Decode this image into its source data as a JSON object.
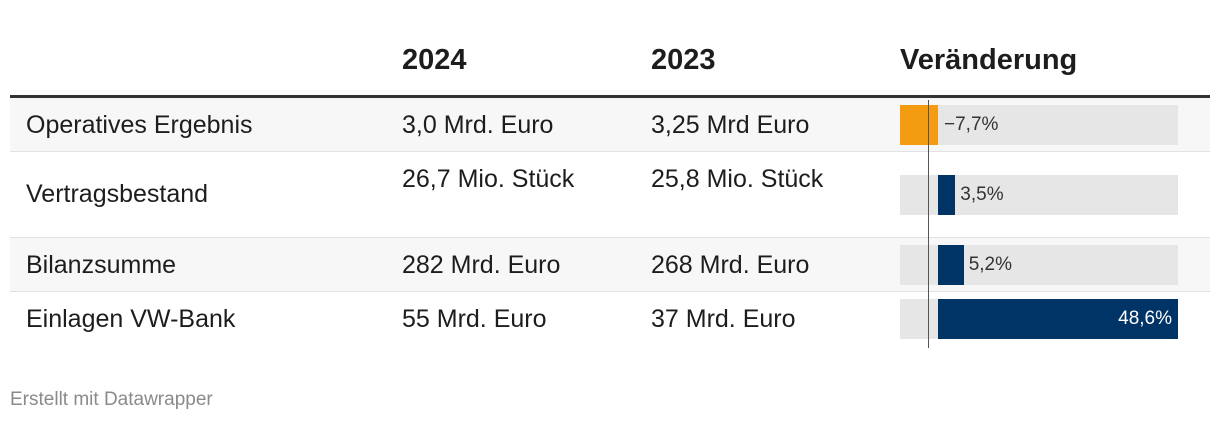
{
  "chart_data": {
    "type": "table",
    "columns": [
      "",
      "2024",
      "2023",
      "Veränderung"
    ],
    "rows": [
      {
        "label": "Operatives Ergebnis",
        "y2024": "3,0 Mrd. Euro",
        "y2023": "3,25 Mrd Euro",
        "change": -7.7,
        "change_label": "−7,7%"
      },
      {
        "label": "Vertragsbestand",
        "y2024": "26,7 Mio. Stück",
        "y2023": "25,8 Mio. Stück",
        "change": 3.5,
        "change_label": "3,5%"
      },
      {
        "label": "Bilanzsumme",
        "y2024": "282 Mrd. Euro",
        "y2023": "268 Mrd. Euro",
        "change": 5.2,
        "change_label": "5,2%"
      },
      {
        "label": "Einlagen VW-Bank",
        "y2024": "55 Mrd. Euro",
        "y2023": "37 Mrd. Euro",
        "change": 48.6,
        "change_label": "48,6%"
      }
    ],
    "change_range": [
      -7.7,
      48.6
    ],
    "colors": {
      "positive": "#003366",
      "negative": "#f39c12",
      "track": "#e6e6e6"
    }
  },
  "footer": "Erstellt mit Datawrapper"
}
